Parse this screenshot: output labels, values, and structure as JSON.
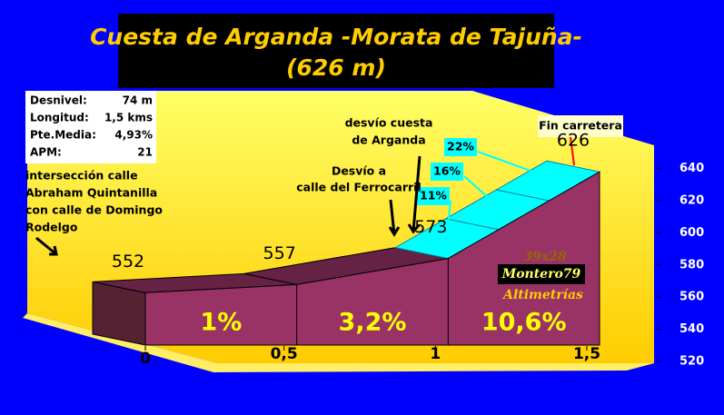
{
  "chart_data": {
    "type": "profile",
    "title": "Cuesta de Arganda -Morata de Tajuña-",
    "subtitle": "(626 m)",
    "stats": [
      [
        "Desnivel:",
        "74 m"
      ],
      [
        "Longitud:",
        "1,5 kms"
      ],
      [
        "Pte.Media:",
        "4,93%"
      ],
      [
        "APM:",
        "21"
      ]
    ],
    "profile": {
      "x": [
        0,
        0.5,
        1,
        1.5
      ],
      "elevation": [
        552,
        557,
        573,
        626
      ]
    },
    "segment_slopes": [
      "1%",
      "3,2%",
      "10,6%"
    ],
    "steep_slopes": [
      "11%",
      "16%",
      "22%"
    ],
    "annotations": {
      "start": [
        "intersección calle",
        "Abraham Quintanilla",
        "con calle de Domingo",
        "Rodelgo"
      ],
      "ferrocarril": [
        "Desvío a",
        "calle del Ferrocarril"
      ],
      "arganda": [
        "desvío cuesta",
        "de Arganda"
      ],
      "end": "Fin carretera"
    },
    "credits": [
      "39x28",
      "Montero79",
      "Altimetrías"
    ],
    "xlim": [
      0,
      1.5
    ],
    "xticks": [
      0,
      {
        "value": 0.5,
        "label": "0,5"
      },
      1,
      {
        "value": 1.5,
        "label": "1,5"
      }
    ],
    "ylim": [
      520,
      640
    ],
    "yticks": [
      520,
      540,
      560,
      580,
      600,
      620,
      640
    ],
    "colors": {
      "front": "#993366",
      "top": "#662244",
      "steep": "#00ffff"
    }
  }
}
